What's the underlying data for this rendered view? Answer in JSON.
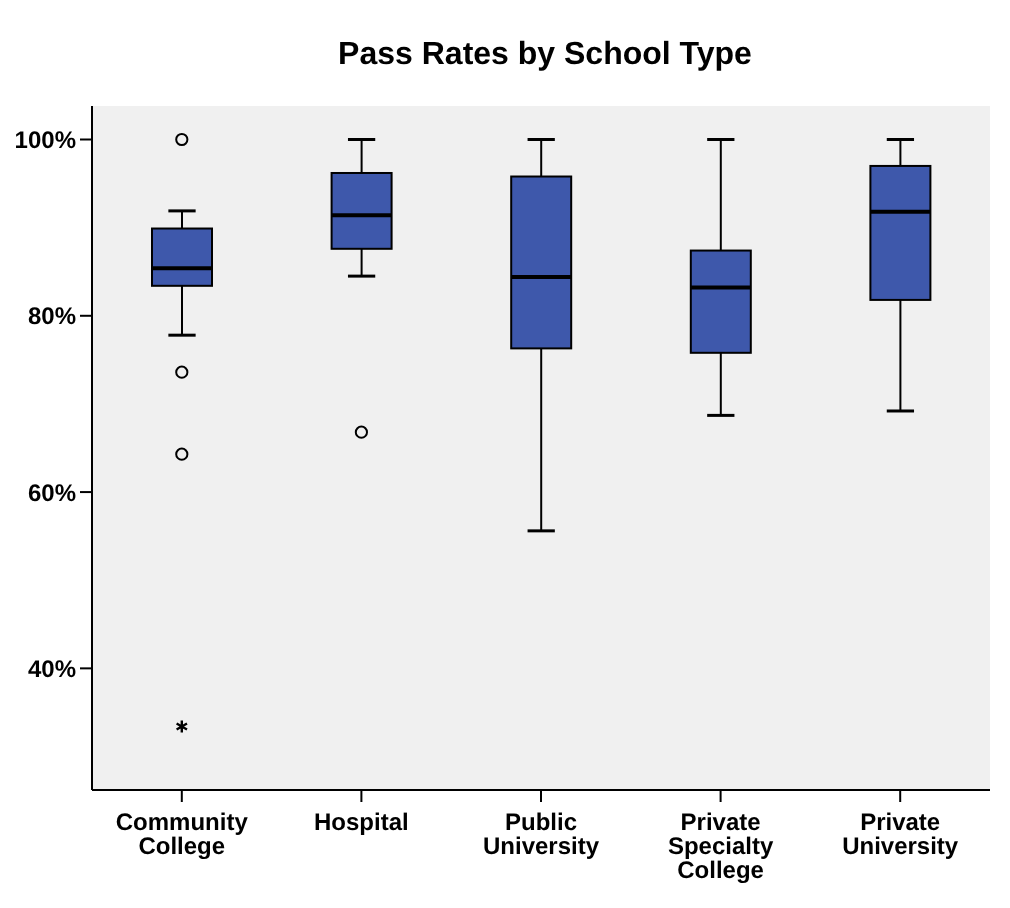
{
  "chart_data": {
    "type": "box",
    "title": "Pass Rates by School Type",
    "categories": [
      "Community College",
      "Hospital",
      "Public University",
      "Private Specialty College",
      "Private University"
    ],
    "color": "#3e58ab",
    "boxes": [
      {
        "low": 77.8,
        "q1": 83.4,
        "median": 85.4,
        "q3": 89.9,
        "high": 91.9,
        "outliers": [
          100,
          73.6,
          64.3,
          33.4
        ]
      },
      {
        "low": 84.5,
        "q1": 87.6,
        "median": 91.4,
        "q3": 96.2,
        "high": 100,
        "outliers": [
          66.8
        ]
      },
      {
        "low": 55.6,
        "q1": 76.3,
        "median": 84.4,
        "q3": 95.8,
        "high": 100
      },
      {
        "low": 68.7,
        "q1": 75.8,
        "median": 83.2,
        "q3": 87.4,
        "high": 100
      },
      {
        "low": 69.2,
        "q1": 81.8,
        "median": 91.8,
        "q3": 97.0,
        "high": 100
      }
    ],
    "ylim": [
      26.2,
      103.8
    ],
    "yticks": [
      {
        "value": 40,
        "label": "40%"
      },
      {
        "value": 60,
        "label": "60%"
      },
      {
        "value": 80,
        "label": "80%"
      },
      {
        "value": 100,
        "label": "100%"
      }
    ],
    "grid": false
  }
}
